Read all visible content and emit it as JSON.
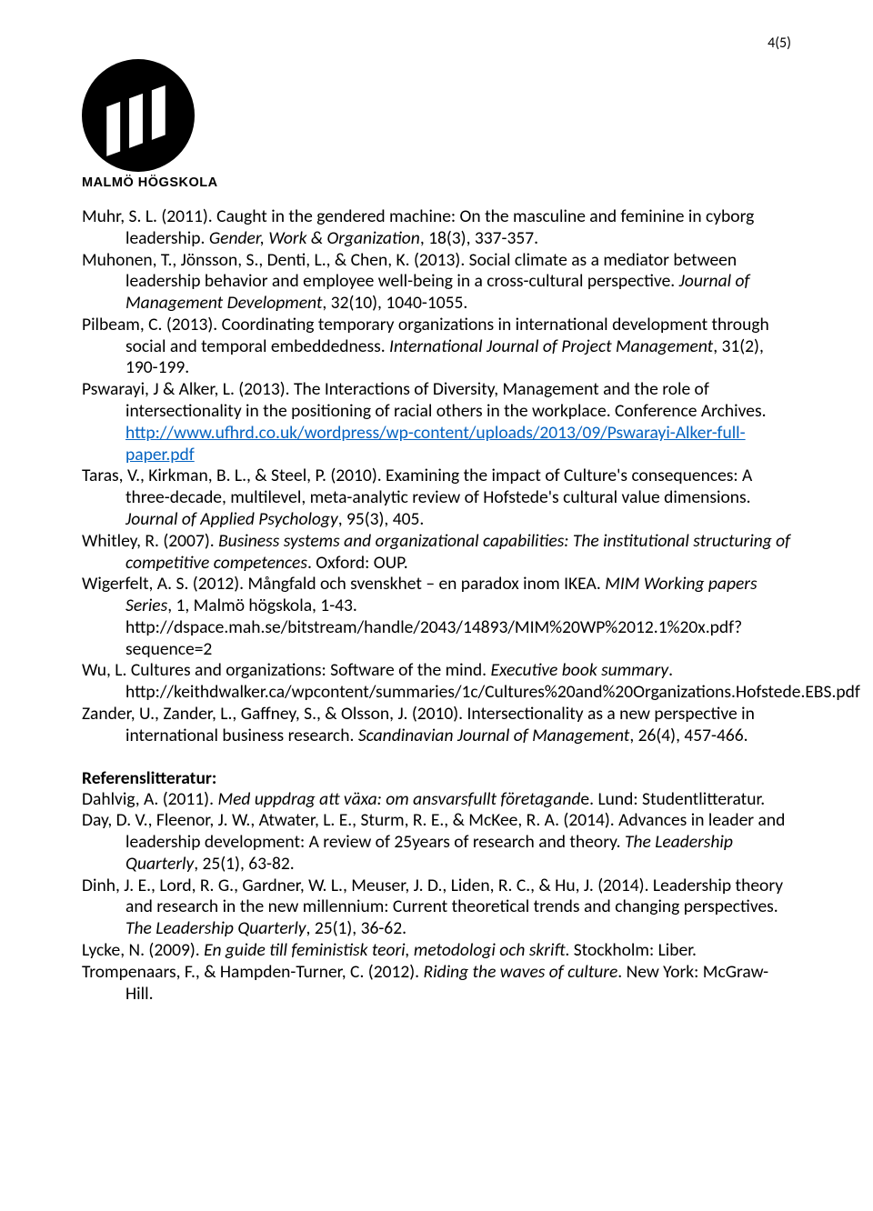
{
  "page_number": "4(5)",
  "logo_label": "MALMÖ HÖGSKOLA",
  "colors": {
    "text": "#000000",
    "background": "#ffffff",
    "link": "#0563c1"
  },
  "refs": [
    {
      "parts": [
        {
          "t": "Muhr, S. L. (2011). Caught in the gendered machine: On the masculine and feminine in cyborg leadership. "
        },
        {
          "t": "Gender, Work & Organization",
          "i": true
        },
        {
          "t": ", 18(3), 337-357."
        }
      ]
    },
    {
      "parts": [
        {
          "t": "Muhonen, T., Jönsson, S., Denti, L., & Chen, K. (2013). Social climate as a mediator between leadership behavior and employee well-being in a cross-cultural perspective. "
        },
        {
          "t": "Journal of Management Development",
          "i": true
        },
        {
          "t": ", 32(10), 1040-1055."
        }
      ]
    },
    {
      "parts": [
        {
          "t": "Pilbeam, C. (2013). Coordinating temporary organizations in international development through social and temporal embeddedness. "
        },
        {
          "t": "International Journal of Project Management",
          "i": true
        },
        {
          "t": ", 31(2), 190-199."
        }
      ]
    },
    {
      "parts": [
        {
          "t": "Pswarayi, J & Alker, L. (2013). The Interactions of Diversity, Management and the role of intersectionality in the positioning of racial others in the workplace. Conference Archives.  "
        },
        {
          "t": "http://www.ufhrd.co.uk/wordpress/wp-content/uploads/2013/09/Pswarayi-Alker-full-paper.pdf",
          "link": true
        }
      ]
    },
    {
      "parts": [
        {
          "t": "Taras, V., Kirkman, B. L., & Steel, P. (2010). Examining the impact of Culture's consequences: A three-decade, multilevel, meta-analytic review of Hofstede's cultural value dimensions. "
        },
        {
          "t": "Journal of Applied Psychology",
          "i": true
        },
        {
          "t": ", 95(3), 405."
        }
      ]
    },
    {
      "parts": [
        {
          "t": "Whitley, R. (2007). "
        },
        {
          "t": "Business systems and organizational capabilities: The institutional structuring of competitive competences",
          "i": true
        },
        {
          "t": ". Oxford: OUP."
        }
      ]
    },
    {
      "parts": [
        {
          "t": "Wigerfelt, A. S. (2012). Mångfald och svenskhet – en paradox inom IKEA. "
        },
        {
          "t": "MIM Working papers Series",
          "i": true
        },
        {
          "t": ", 1, Malmö högskola, 1-43. http://dspace.mah.se/bitstream/handle/2043/14893/MIM%20WP%2012.1%20x.pdf?sequence=2"
        }
      ]
    },
    {
      "parts": [
        {
          "t": "Wu, L. Cultures and organizations: Software of the mind. "
        },
        {
          "t": "Executive book summary",
          "i": true
        },
        {
          "t": ". http://keithdwalker.ca/wpcontent/summaries/1c/Cultures%20and%20Organizations.Hofstede.EBS.pdf"
        }
      ]
    },
    {
      "parts": [
        {
          "t": "Zander, U., Zander, L., Gaffney, S., & Olsson, J. (2010). Intersectionality as a new perspective in international business research. "
        },
        {
          "t": "Scandinavian Journal of Management",
          "i": true
        },
        {
          "t": ", 26(4), 457-466."
        }
      ]
    }
  ],
  "section_heading": "Referenslitteratur:",
  "refs2": [
    {
      "parts": [
        {
          "t": "Dahlvig, A. (2011). "
        },
        {
          "t": "Med uppdrag att växa: om ansvarsfullt företagand",
          "i": true
        },
        {
          "t": "e. Lund: Studentlitteratur."
        }
      ]
    },
    {
      "parts": [
        {
          "t": "Day, D. V., Fleenor, J. W., Atwater, L. E., Sturm, R. E., & McKee, R. A. (2014). Advances in leader and leadership development: A review of 25years of research and theory. "
        },
        {
          "t": "The Leadership Quarterly",
          "i": true
        },
        {
          "t": ", 25(1), 63-82."
        }
      ]
    },
    {
      "parts": [
        {
          "t": "Dinh, J. E., Lord, R. G., Gardner, W. L., Meuser, J. D., Liden, R. C., & Hu, J. (2014). Leadership theory and research in the new millennium: Current theoretical trends and changing perspectives. "
        },
        {
          "t": "The Leadership Quarterly",
          "i": true
        },
        {
          "t": ", 25(1), 36-62."
        }
      ]
    },
    {
      "parts": [
        {
          "t": "Lycke, N. (2009). "
        },
        {
          "t": "En guide till feministisk teori, metodologi och skrift",
          "i": true
        },
        {
          "t": ". Stockholm: Liber."
        }
      ]
    },
    {
      "parts": [
        {
          "t": "Trompenaars, F., & Hampden-Turner, C. (2012). "
        },
        {
          "t": "Riding the waves of culture",
          "i": true
        },
        {
          "t": ". New York: McGraw-Hill."
        }
      ]
    }
  ]
}
